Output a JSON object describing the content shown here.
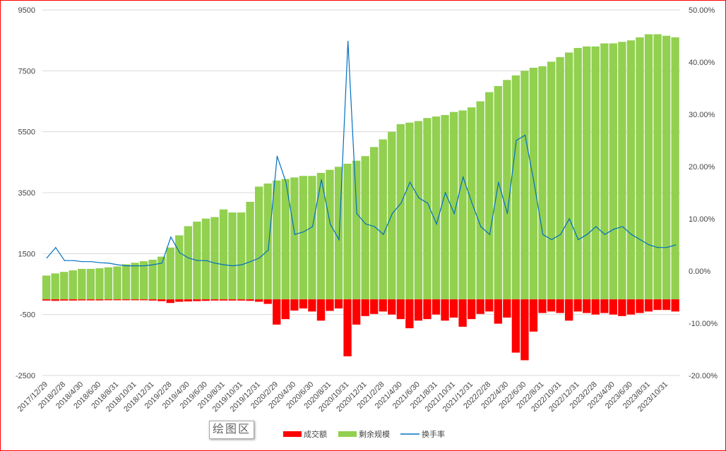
{
  "chart_data": {
    "type": "bar+line",
    "title": "",
    "left_axis": {
      "min": -2500,
      "max": 9500,
      "ticks": [
        "9500",
        "7500",
        "5500",
        "3500",
        "1500",
        "-500",
        "-2500"
      ]
    },
    "right_axis": {
      "min": -20,
      "max": 50,
      "ticks": [
        "50.00%",
        "40.00%",
        "30.00%",
        "20.00%",
        "10.00%",
        "0.00%",
        "-10.00%",
        "-20.00%"
      ]
    },
    "x_tick_labels": [
      "2017/12/29",
      "2018/2/28",
      "2018/4/30",
      "2018/6/30",
      "2018/8/31",
      "2018/10/31",
      "2018/12/31",
      "2019/2/28",
      "2019/4/30",
      "2019/6/30",
      "2019/8/31",
      "2019/10/31",
      "2019/12/31",
      "2020/2/29",
      "2020/4/30",
      "2020/6/30",
      "2020/8/31",
      "2020/10/31",
      "2020/12/31",
      "2021/2/28",
      "2021/4/30",
      "2021/6/30",
      "2021/8/31",
      "2021/10/31",
      "2021/12/31",
      "2022/2/28",
      "2022/4/30",
      "2022/6/30",
      "2022/8/31",
      "2022/10/31",
      "2022/12/31",
      "2023/2/28",
      "2023/4/30",
      "2023/6/30",
      "2023/8/31",
      "2023/10/31"
    ],
    "series": [
      {
        "name": "成交额",
        "type": "bar",
        "axis": "left",
        "color": "#ff0000",
        "values": [
          -40,
          -50,
          -40,
          -40,
          -35,
          -35,
          -35,
          -30,
          -30,
          -30,
          -30,
          -30,
          -40,
          -60,
          -120,
          -80,
          -70,
          -60,
          -50,
          -40,
          -40,
          -40,
          -40,
          -50,
          -80,
          -150,
          -830,
          -650,
          -370,
          -300,
          -400,
          -700,
          -380,
          -300,
          -1870,
          -830,
          -550,
          -480,
          -400,
          -500,
          -650,
          -950,
          -700,
          -650,
          -500,
          -700,
          -600,
          -900,
          -650,
          -480,
          -400,
          -800,
          -600,
          -1750,
          -2000,
          -1060,
          -450,
          -400,
          -450,
          -700,
          -400,
          -450,
          -500,
          -450,
          -500,
          -550,
          -500,
          -450,
          -400,
          -350,
          -350,
          -400
        ]
      },
      {
        "name": "剩余规模",
        "type": "bar",
        "axis": "left",
        "color": "#92d050",
        "values": [
          780,
          850,
          900,
          950,
          1000,
          1000,
          1020,
          1050,
          1080,
          1150,
          1200,
          1250,
          1300,
          1400,
          1700,
          2100,
          2400,
          2550,
          2650,
          2700,
          2950,
          2850,
          2850,
          3200,
          3700,
          3800,
          3900,
          3950,
          4000,
          4050,
          4050,
          4150,
          4250,
          4350,
          4450,
          4550,
          4700,
          5000,
          5250,
          5500,
          5750,
          5800,
          5850,
          5950,
          6000,
          6050,
          6150,
          6200,
          6300,
          6500,
          6800,
          7000,
          7200,
          7350,
          7500,
          7600,
          7650,
          7800,
          7950,
          8100,
          8250,
          8300,
          8300,
          8400,
          8400,
          8450,
          8500,
          8600,
          8700,
          8700,
          8650,
          8600
        ]
      },
      {
        "name": "换手率",
        "type": "line",
        "axis": "right",
        "unit": "%",
        "color": "#0070c0",
        "values": [
          2.5,
          4.5,
          2.0,
          2.0,
          1.8,
          1.8,
          1.6,
          1.5,
          1.2,
          1.0,
          1.0,
          1.0,
          1.2,
          1.5,
          6.5,
          3.5,
          2.5,
          2.0,
          2.0,
          1.5,
          1.2,
          1.0,
          1.2,
          1.8,
          2.5,
          4.0,
          22.0,
          17.0,
          7.0,
          7.5,
          8.5,
          17.5,
          9.0,
          6.0,
          44.0,
          11.0,
          9.0,
          8.5,
          7.0,
          11.0,
          13.0,
          17.0,
          14.0,
          13.0,
          9.0,
          15.0,
          11.0,
          18.0,
          13.0,
          8.5,
          7.0,
          17.0,
          11.0,
          25.0,
          26.0,
          17.0,
          7.0,
          6.0,
          7.0,
          10.0,
          6.0,
          7.0,
          8.5,
          7.0,
          8.0,
          8.5,
          7.0,
          6.0,
          5.0,
          4.5,
          4.5,
          5.0
        ]
      }
    ],
    "legend": [
      "成交额",
      "剩余规模",
      "换手率"
    ],
    "legend_position": "bottom",
    "grid": true
  },
  "tooltip": {
    "label": "绘图区"
  }
}
